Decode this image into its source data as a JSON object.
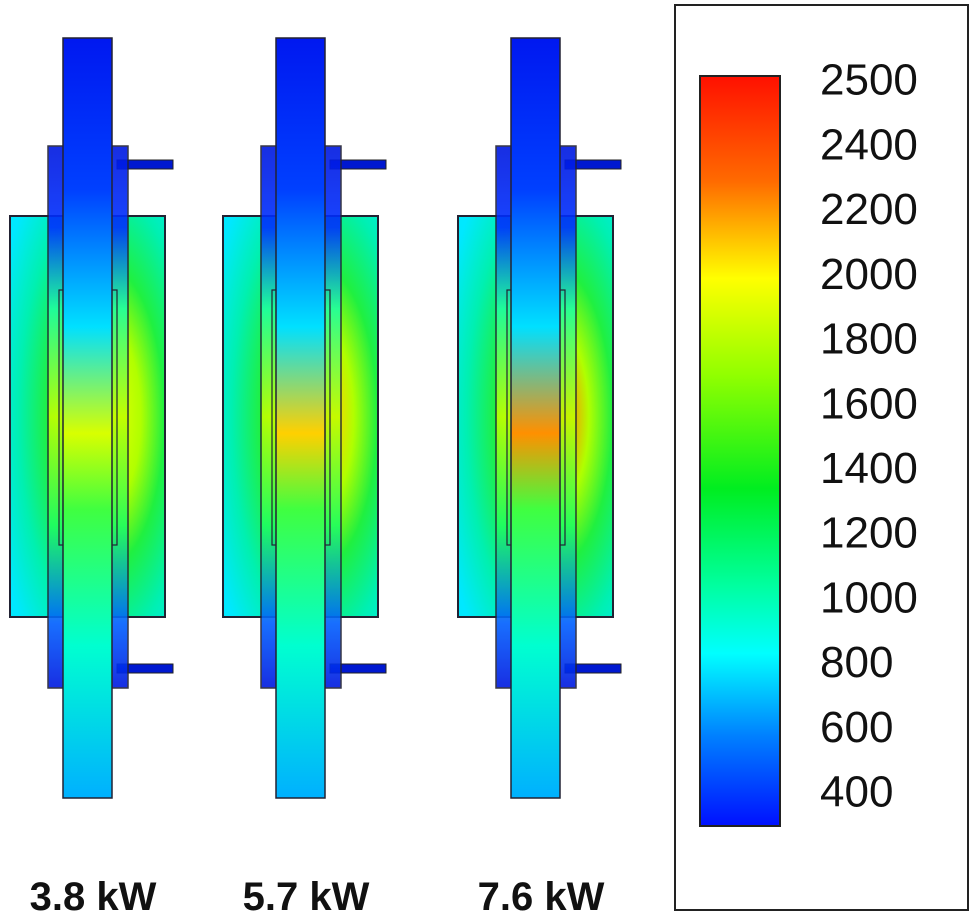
{
  "panels": [
    {
      "label": "3.8 kW"
    },
    {
      "label": "5.7 kW"
    },
    {
      "label": "7.6 kW"
    }
  ],
  "colorbar": {
    "labels": [
      "2500",
      "2400",
      "2200",
      "2000",
      "1800",
      "1600",
      "1400",
      "1200",
      "1000",
      "800",
      "600",
      "400"
    ]
  }
}
